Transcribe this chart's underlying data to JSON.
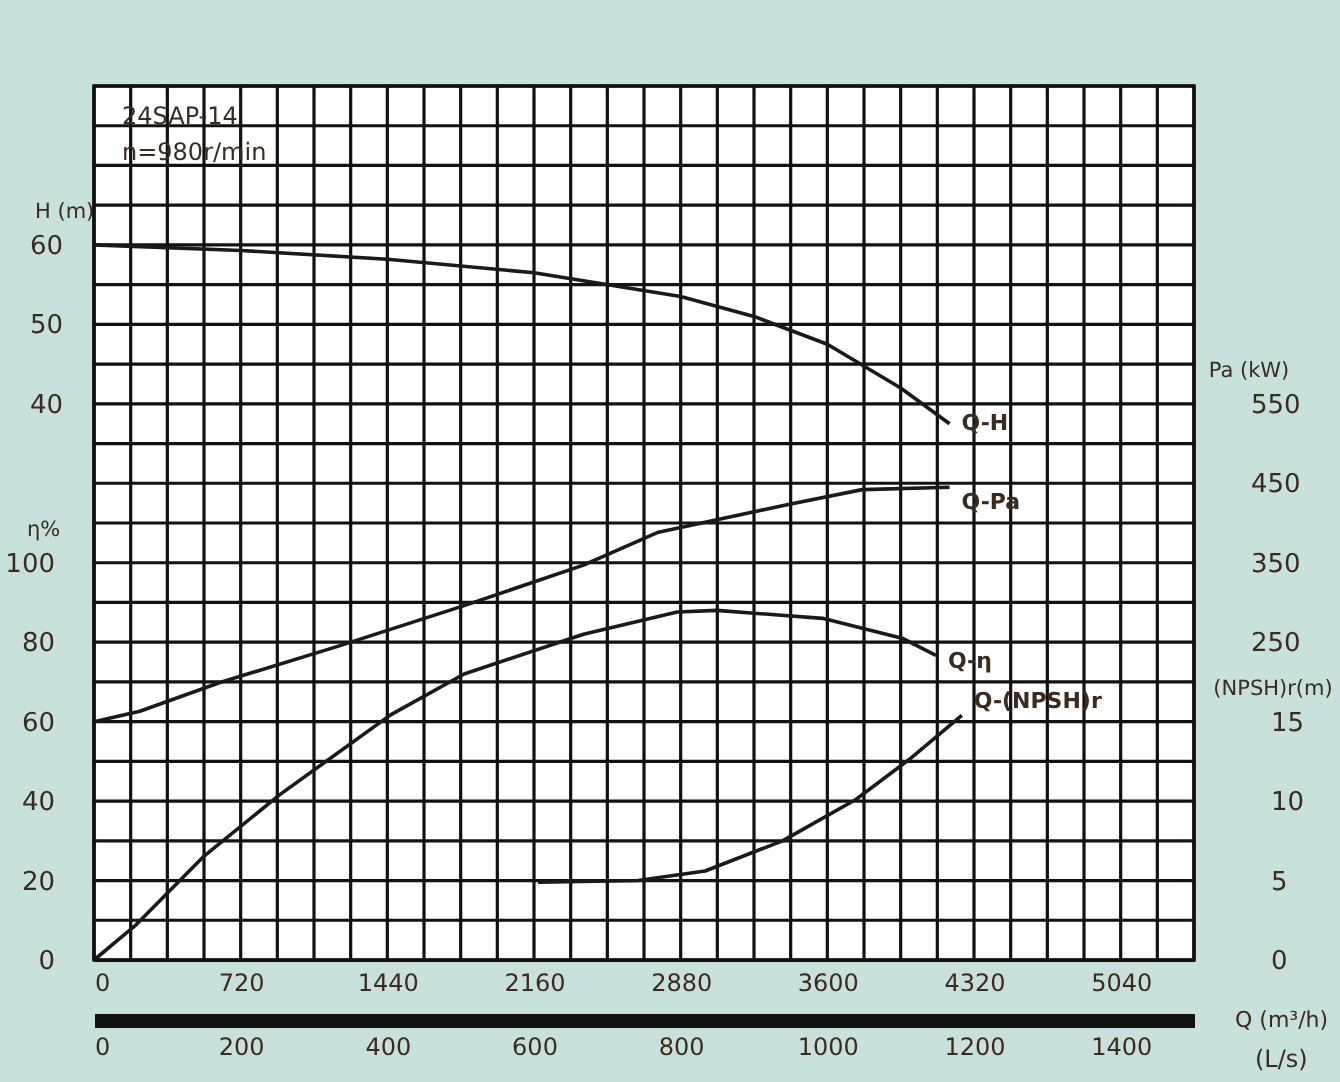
{
  "chart_data": [
    {
      "type": "line",
      "xlabel": "Q (m³/h)",
      "x2label": "(L/s)",
      "ylabel": "η%",
      "y2label": "Pa (kW)",
      "y3label": "H (m)",
      "annotations": [
        "24SAP-14",
        "n=980r/min"
      ],
      "xlim": [
        0,
        5400
      ],
      "xticks": [
        0,
        {
          "value": 180,
          "label": null
        },
        {
          "value": 360,
          "label": null
        },
        {
          "value": 540,
          "label": null
        },
        720,
        {
          "value": 900,
          "label": null
        },
        {
          "value": 1080,
          "label": null
        },
        {
          "value": 1260,
          "label": null
        },
        1440,
        {
          "value": 1620,
          "label": null
        },
        {
          "value": 1800,
          "label": null
        },
        {
          "value": 1980,
          "label": null
        },
        2160,
        {
          "value": 2340,
          "label": null
        },
        {
          "value": 2520,
          "label": null
        },
        {
          "value": 2700,
          "label": null
        },
        2880,
        {
          "value": 3060,
          "label": null
        },
        {
          "value": 3240,
          "label": null
        },
        {
          "value": 3420,
          "label": null
        },
        3600,
        {
          "value": 3780,
          "label": null
        },
        {
          "value": 3960,
          "label": null
        },
        {
          "value": 4140,
          "label": null
        },
        4320,
        {
          "value": 4500,
          "label": null
        },
        {
          "value": 4680,
          "label": null
        },
        {
          "value": 4860,
          "label": null
        },
        5040,
        {
          "value": 5220,
          "label": null
        },
        {
          "value": 5400,
          "label": null
        }
      ],
      "x2lim": [
        0,
        1500
      ],
      "x2ticks": [
        0,
        200,
        400,
        600,
        800,
        1000,
        1200,
        1400
      ],
      "ylim": [
        0,
        220
      ],
      "yticks": [
        0,
        {
          "value": 10,
          "label": null
        },
        20,
        {
          "value": 30,
          "label": null
        },
        40,
        {
          "value": 50,
          "label": null
        },
        60,
        {
          "value": 70,
          "label": null
        },
        80,
        {
          "value": 90,
          "label": null
        },
        100,
        {
          "value": 110,
          "label": null
        },
        {
          "value": 120,
          "label": null
        },
        {
          "value": 130,
          "label": null
        },
        {
          "value": 140,
          "label": null
        },
        {
          "value": 150,
          "label": null
        },
        {
          "value": 160,
          "label": null
        },
        {
          "value": 170,
          "label": null
        },
        {
          "value": 180,
          "label": null
        },
        {
          "value": 190,
          "label": null
        },
        {
          "value": 200,
          "label": null
        },
        {
          "value": 210,
          "label": null
        },
        {
          "value": 220,
          "label": null
        }
      ],
      "y2lim": [
        -150,
        950
      ],
      "y2ticks": [
        250,
        350,
        450,
        550
      ],
      "y3lim": [
        -30,
        80
      ],
      "y3ticks": [
        40,
        50,
        60
      ],
      "grid": true,
      "marker": "none",
      "line_style": "solid",
      "series": [
        {
          "name": "Q-H",
          "axis": "y3",
          "color": "#1a1a1a",
          "x": [
            0,
            720,
            1440,
            2160,
            2880,
            3240,
            3600,
            3960,
            4200
          ],
          "values": [
            60,
            59.3,
            58.2,
            56.5,
            53.5,
            51,
            47.5,
            42,
            37.5
          ]
        },
        {
          "name": "Q-η",
          "color": "#1a1a1a",
          "x": [
            0,
            205,
            537,
            909,
            1456,
            1817,
            2403,
            2863,
            3058,
            3576,
            3967,
            4133
          ],
          "values": [
            0,
            8.8,
            26,
            41.5,
            61.7,
            72,
            82,
            87.6,
            88,
            86,
            81,
            76.7
          ]
        },
        {
          "name": "Q-Pa",
          "axis": "y2",
          "color": "#1a1a1a",
          "x": [
            0,
            225,
            615,
            1200,
            1817,
            2403,
            2765,
            3420,
            3771,
            4200
          ],
          "values": [
            150,
            163,
            199,
            245,
            296,
            347,
            388,
            424,
            442,
            445
          ]
        }
      ]
    },
    {
      "type": "line",
      "ylabel": "(NPSH)r(m)",
      "xlim": [
        0,
        5400
      ],
      "ylim": [
        0,
        55
      ],
      "yticks": [
        0,
        5,
        10,
        15
      ],
      "tick_labels": "y",
      "marker": "none",
      "line_style": "solid",
      "series": [
        {
          "name": "Q-(NPSH)r",
          "color": "#1a1a1a",
          "x": [
            2180,
            2670,
            3000,
            3380,
            3740,
            4000,
            4260
          ],
          "values": [
            4.9,
            5,
            5.6,
            7.5,
            10.1,
            12.6,
            15.4
          ]
        }
      ]
    }
  ]
}
